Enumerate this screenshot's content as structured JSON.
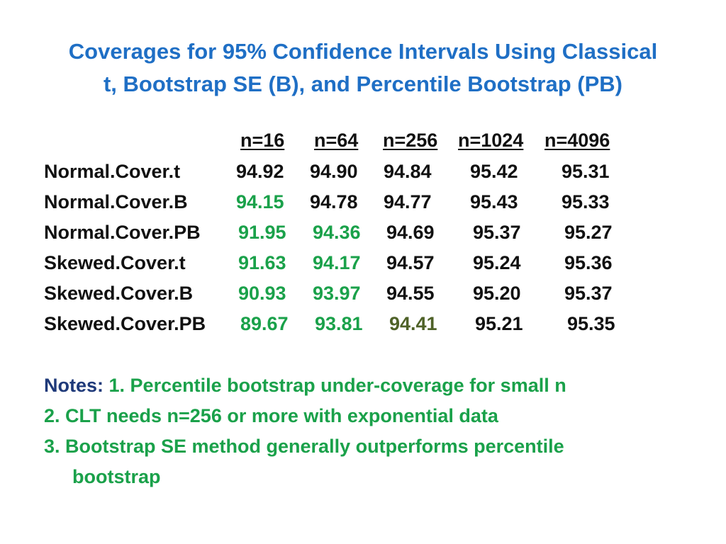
{
  "title": {
    "line1": "Coverages for 95% Confidence Intervals Using Classical",
    "line2": "t, Bootstrap SE (B), and Percentile Bootstrap (PB)"
  },
  "table": {
    "headers": [
      "n=16",
      "n=64",
      "n=256",
      "n=1024",
      "n=4096"
    ],
    "rows": [
      {
        "label": "Normal.Cover.t",
        "values": [
          "94.92",
          "94.90",
          "94.84",
          "95.42",
          "95.31"
        ],
        "colors": [
          "black",
          "black",
          "black",
          "black",
          "black"
        ]
      },
      {
        "label": "Normal.Cover.B",
        "values": [
          "94.15",
          "94.78",
          "94.77",
          "95.43",
          "95.33"
        ],
        "colors": [
          "green",
          "black",
          "black",
          "black",
          "black"
        ]
      },
      {
        "label": "Normal.Cover.PB",
        "values": [
          "91.95",
          "94.36",
          "94.69",
          "95.37",
          "95.27"
        ],
        "colors": [
          "green",
          "green",
          "black",
          "black",
          "black"
        ]
      },
      {
        "label": "Skewed.Cover.t",
        "values": [
          "91.63",
          "94.17",
          "94.57",
          "95.24",
          "95.36"
        ],
        "colors": [
          "green",
          "green",
          "black",
          "black",
          "black"
        ]
      },
      {
        "label": "Skewed.Cover.B",
        "values": [
          "90.93",
          "93.97",
          "94.55",
          "95.20",
          "95.37"
        ],
        "colors": [
          "green",
          "green",
          "black",
          "black",
          "black"
        ]
      },
      {
        "label": "Skewed.Cover.PB",
        "values": [
          "89.67",
          "93.81",
          "94.41",
          "95.21",
          "95.35"
        ],
        "colors": [
          "green",
          "green",
          "olive",
          "black",
          "black"
        ]
      }
    ]
  },
  "notes": {
    "label": "Notes:",
    "note1": "1. Percentile bootstrap under-coverage for small n",
    "note2": "2. CLT needs n=256 or more with exponential data",
    "note3a": "3. Bootstrap SE method generally outperforms percentile",
    "note3b": "bootstrap"
  },
  "colors": {
    "title": "#1f6fc5",
    "green": "#1aa14a",
    "olive": "#4f6228",
    "notes_label": "#1f3a7a",
    "text": "#111111"
  }
}
